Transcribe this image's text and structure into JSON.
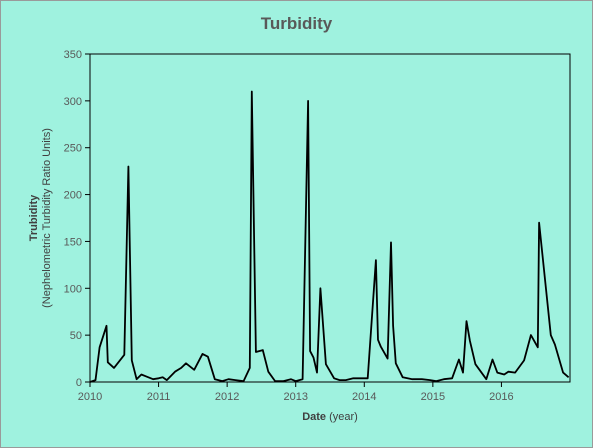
{
  "chart_data": {
    "type": "line",
    "title": "Turbidity",
    "xlabel_bold": "Date",
    "xlabel_rest": " (year)",
    "ylabel_line1": "Trubidity",
    "ylabel_line2": "(Nephelometric Turbidity Ratio Units)",
    "xlim": [
      2010,
      2017
    ],
    "ylim": [
      0,
      350
    ],
    "x_ticks": [
      "2010",
      "2011",
      "2012",
      "2013",
      "2014",
      "2015",
      "2016"
    ],
    "y_ticks": [
      "0",
      "50",
      "100",
      "150",
      "200",
      "250",
      "300",
      "350"
    ],
    "grid": false,
    "line_color": "#000000",
    "series": [
      {
        "x": [
          2010.0,
          2010.08,
          2010.14,
          2010.24,
          2010.26,
          2010.35,
          2010.5,
          2010.56,
          2010.61,
          2010.68,
          2010.75,
          2010.82,
          2010.92,
          2011.0,
          2011.06,
          2011.12,
          2011.24,
          2011.33,
          2011.4,
          2011.52,
          2011.64,
          2011.72,
          2011.82,
          2011.93,
          2012.02,
          2012.12,
          2012.24,
          2012.33,
          2012.36,
          2012.42,
          2012.52,
          2012.6,
          2012.7,
          2012.82,
          2012.93,
          2013.0,
          2013.1,
          2013.18,
          2013.21,
          2013.26,
          2013.31,
          2013.36,
          2013.44,
          2013.56,
          2013.64,
          2013.73,
          2013.84,
          2013.96,
          2014.05,
          2014.17,
          2014.2,
          2014.24,
          2014.34,
          2014.39,
          2014.42,
          2014.46,
          2014.56,
          2014.7,
          2014.84,
          2014.96,
          2015.05,
          2015.16,
          2015.28,
          2015.38,
          2015.44,
          2015.49,
          2015.54,
          2015.62,
          2015.78,
          2015.87,
          2015.94,
          2016.04,
          2016.1,
          2016.2,
          2016.33,
          2016.43,
          2016.53,
          2016.55,
          2016.72,
          2016.78,
          2016.9,
          2016.98
        ],
        "y": [
          0,
          2,
          37,
          60,
          21,
          15,
          29,
          230,
          23,
          3,
          8,
          6,
          3,
          4,
          5,
          2,
          11,
          15,
          20,
          13,
          30,
          27,
          3,
          1,
          3,
          2,
          1,
          15,
          310,
          32,
          34,
          11,
          1,
          1,
          3,
          1,
          3,
          300,
          33,
          26,
          10,
          100,
          19,
          4,
          2,
          2,
          4,
          4,
          4,
          130,
          45,
          38,
          25,
          149,
          60,
          20,
          5,
          3,
          3,
          2,
          1,
          3,
          4,
          24,
          10,
          65,
          44,
          19,
          3,
          24,
          10,
          8,
          11,
          10,
          23,
          50,
          37,
          170,
          50,
          40,
          10,
          5
        ]
      }
    ]
  }
}
